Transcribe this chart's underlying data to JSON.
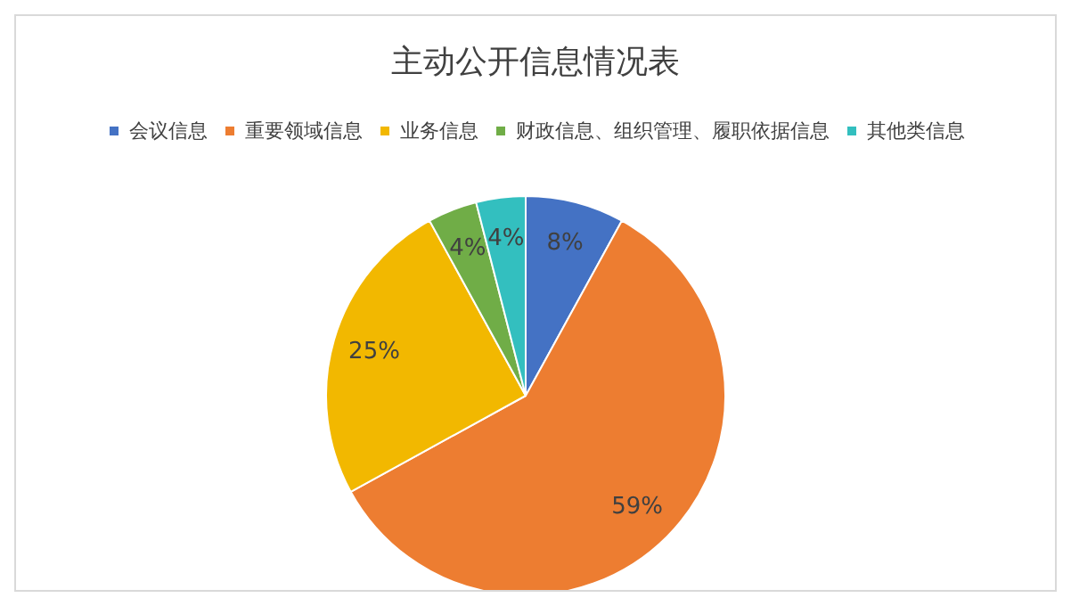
{
  "chart_data": {
    "type": "pie",
    "title": "主动公开信息情况表",
    "categories": [
      "会议信息",
      "重要领域信息",
      "业务信息",
      "财政信息、组织管理、履职依据信息",
      "其他类信息"
    ],
    "values": [
      8,
      59,
      25,
      4,
      4
    ],
    "value_labels": [
      "8%",
      "59%",
      "25%",
      "4%",
      "4%"
    ],
    "colors": [
      "#4472c4",
      "#ed7d31",
      "#f2b800",
      "#70ad47",
      "#33bfbf"
    ],
    "legend": "top"
  }
}
